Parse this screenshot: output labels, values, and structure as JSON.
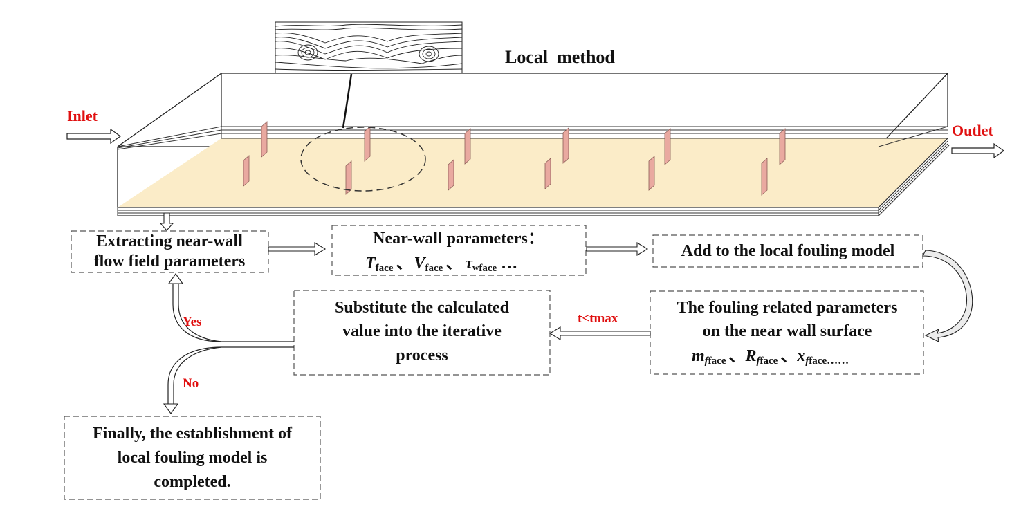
{
  "title": "Local  method",
  "labels": {
    "inlet": "Inlet",
    "outlet": "Outlet",
    "yes": "Yes",
    "no": "No",
    "loop_condition": "t<tmax"
  },
  "boxes": {
    "extract": {
      "lines": [
        "Extracting near-wall",
        "flow field parameters"
      ]
    },
    "nearwall": {
      "title": "Near-wall parameters：",
      "T": "T",
      "T_sub": "face",
      "sep1": "、",
      "V": "V",
      "V_sub": "face",
      "sep2": "、",
      "tau": "τ",
      "tau_sub": "w",
      "tau_sub2": "face",
      "ellipsis": " …"
    },
    "add_model": {
      "lines": [
        "Add to the local fouling model"
      ]
    },
    "fouling_params": {
      "lines": [
        "The fouling related parameters",
        "on the near wall surface"
      ],
      "m": "m",
      "m_sub": "f",
      "m_sub2": "face",
      "sep1": "、",
      "R": "R",
      "R_sub": "f",
      "R_sub2": "face",
      "sep2": "、",
      "x": "x",
      "x_sub": "f",
      "x_sub2": "face",
      "ellipsis": "……"
    },
    "substitute": {
      "lines": [
        "Substitute the calculated",
        "value into the iterative",
        "process"
      ]
    },
    "final": {
      "lines": [
        "Finally, the establishment",
        "of",
        "local fouling model is",
        "completed."
      ]
    }
  },
  "colors": {
    "accent_red": "#e01010",
    "plate_fill": "#fbecc8",
    "fin_fill": "#e9a9a0",
    "line": "#222222",
    "dash": "#555555"
  }
}
